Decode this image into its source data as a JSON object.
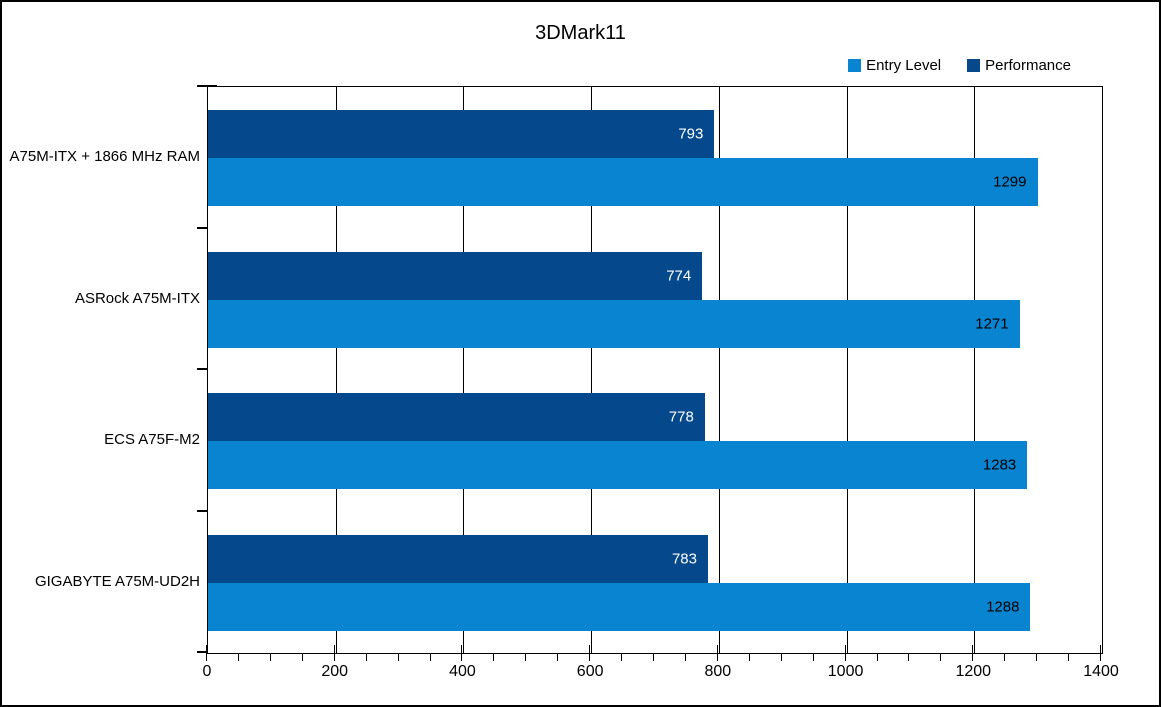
{
  "title": "3DMark11",
  "colors": {
    "entry_level": "#0884D0",
    "performance": "#05498C",
    "grid": "#000000",
    "border": "#000000",
    "background": "#FFFFFF",
    "perf_value_label": "#FFFFFF",
    "entry_value_label": "#000000"
  },
  "legend": {
    "position": "top-right",
    "items": [
      {
        "label": "Entry Level",
        "color": "#0884D0"
      },
      {
        "label": "Performance",
        "color": "#05498C"
      }
    ]
  },
  "chart_data": {
    "type": "bar",
    "orientation": "horizontal",
    "title": "3DMark11",
    "categories": [
      "A75M-ITX + 1866 MHz RAM",
      "ASRock A75M-ITX",
      "ECS A75F-M2",
      "GIGABYTE A75M-UD2H"
    ],
    "series": [
      {
        "name": "Entry Level",
        "values": [
          1299,
          1271,
          1283,
          1288
        ]
      },
      {
        "name": "Performance",
        "values": [
          793,
          774,
          778,
          783
        ]
      }
    ],
    "bar_order_top_to_bottom": [
      "Performance",
      "Entry Level"
    ],
    "value_labels": "inside-end",
    "xlabel": "",
    "ylabel": "",
    "xlim": [
      0,
      1400
    ],
    "x_major_step": 200,
    "x_minor_step": 50,
    "x_ticks": [
      "0",
      "200",
      "400",
      "600",
      "800",
      "1000",
      "1200",
      "1400"
    ],
    "grid": true,
    "gridlines_every": 200,
    "legend_position": "top-right"
  }
}
